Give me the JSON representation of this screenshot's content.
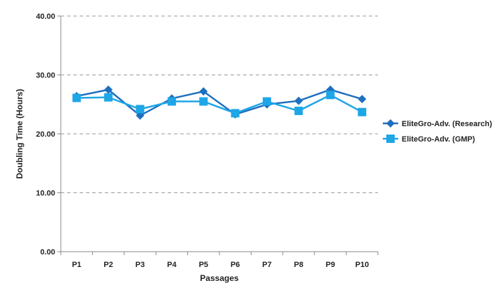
{
  "chart_data": {
    "type": "line",
    "title": "",
    "xlabel": "Passages",
    "ylabel": "Doubling Time (Hours)",
    "ylim": [
      0,
      40
    ],
    "yticks": [
      "0.00",
      "10.00",
      "20.00",
      "30.00",
      "40.00"
    ],
    "grid": true,
    "legend_position": "right",
    "categories": [
      "P1",
      "P2",
      "P3",
      "P4",
      "P5",
      "P6",
      "P7",
      "P8",
      "P9",
      "P10"
    ],
    "series": [
      {
        "name": "EliteGro-Adv. (Research)",
        "color": "#1f6fbf",
        "marker": "diamond",
        "values": [
          26.4,
          27.5,
          23.1,
          26.0,
          27.2,
          23.3,
          25.0,
          25.6,
          27.5,
          25.9
        ]
      },
      {
        "name": "EliteGro-Adv. (GMP)",
        "color": "#1ea6e6",
        "marker": "square",
        "values": [
          26.1,
          26.2,
          24.2,
          25.5,
          25.5,
          23.5,
          25.5,
          23.9,
          26.6,
          23.7
        ]
      }
    ]
  }
}
